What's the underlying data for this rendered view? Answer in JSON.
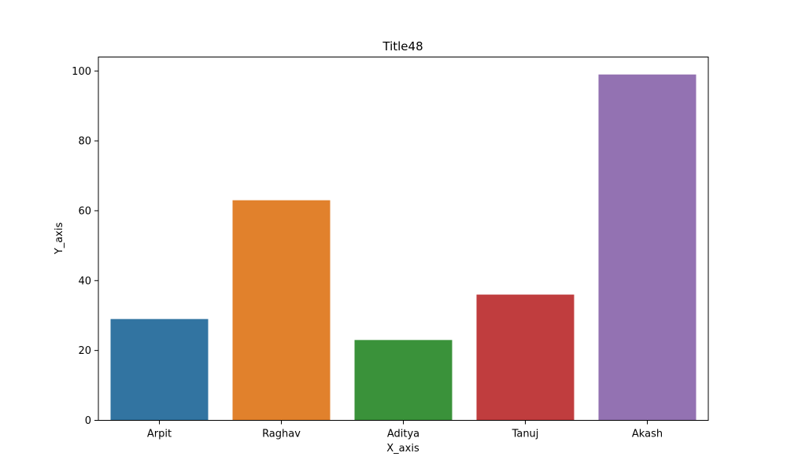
{
  "chart_data": {
    "type": "bar",
    "title": "Title48",
    "xlabel": "X_axis",
    "ylabel": "Y_axis",
    "categories": [
      "Arpit",
      "Raghav",
      "Aditya",
      "Tanuj",
      "Akash"
    ],
    "values": [
      29,
      63,
      23,
      36,
      99
    ],
    "colors": [
      "#3274a1",
      "#e1812c",
      "#3a923a",
      "#c03d3e",
      "#9372b2"
    ],
    "ylim": [
      0,
      104
    ],
    "yticks": [
      0,
      20,
      40,
      60,
      80,
      100
    ],
    "grid": false,
    "legend": "none"
  }
}
